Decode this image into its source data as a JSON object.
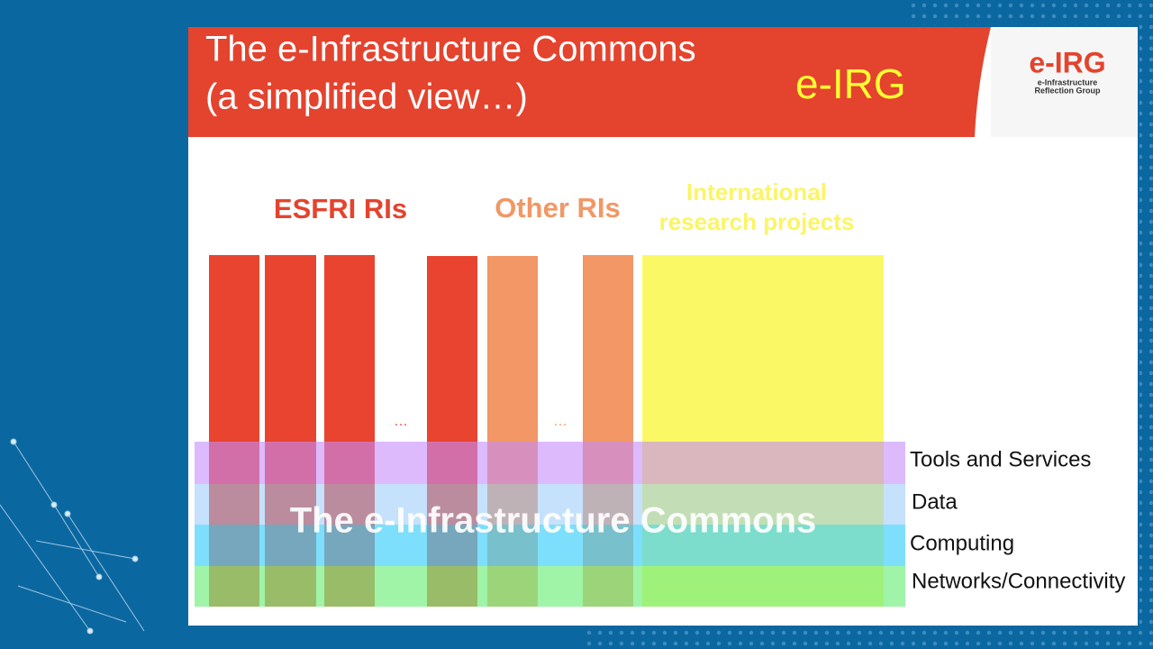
{
  "header": {
    "title_line1": "The e-Infrastructure Commons",
    "title_line2": "(a simplified view…)",
    "tag": "e-IRG"
  },
  "logo": {
    "name": "e-IRG",
    "line1": "e-Infrastructure",
    "line2": "Reflection Group"
  },
  "groups": {
    "esfri": "ESFRI RIs",
    "other": "Other RIs",
    "international_line1": "International",
    "international_line2": "research projects",
    "ellipsis_1": "…",
    "ellipsis_2": "…"
  },
  "layers": [
    "Tools and Services",
    "Data",
    "Computing",
    "Networks/Connectivity"
  ],
  "overlay": "The e-Infrastructure Commons"
}
